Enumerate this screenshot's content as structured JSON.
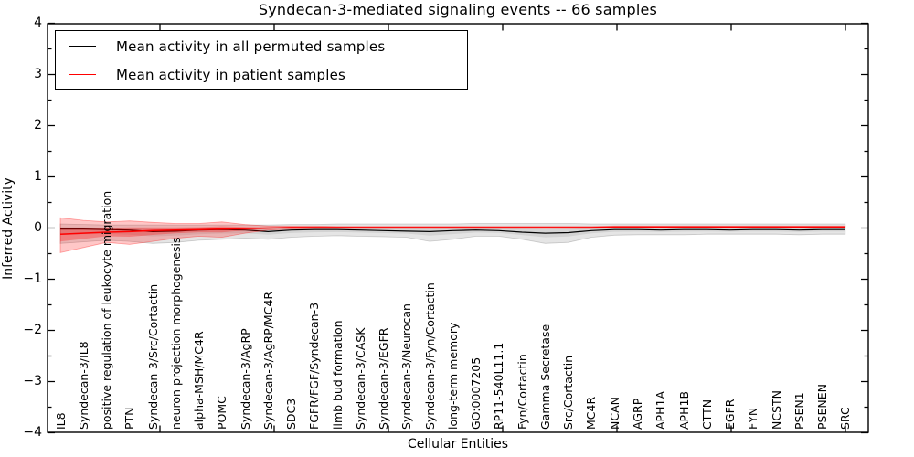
{
  "title": "Syndecan-3-mediated signaling events -- 66 samples",
  "axes": {
    "x_label": "Cellular Entities",
    "y_label": "Inferred Activity",
    "y_ticks": [
      "4",
      "3",
      "2",
      "1",
      "0",
      "−1",
      "−2",
      "−3",
      "−4"
    ]
  },
  "legend": {
    "items": [
      {
        "label": "Mean activity in all permuted samples",
        "color": "#000000"
      },
      {
        "label": "Mean activity in patient samples",
        "color": "#ff0000"
      }
    ]
  },
  "chart_data": {
    "type": "line",
    "title": "Syndecan-3-mediated signaling events -- 66 samples",
    "xlabel": "Cellular Entities",
    "ylabel": "Inferred Activity",
    "ylim": [
      -4,
      4
    ],
    "grid": false,
    "legend_position": "upper left",
    "reference_line": {
      "y": 0,
      "style": "dotted",
      "color": "#000000"
    },
    "categories": [
      "IL8",
      "Syndecan-3/IL8",
      "positive regulation of leukocyte migration",
      "PTN",
      "Syndecan-3/Src/Cortactin",
      "neuron projection morphogenesis",
      "alpha-MSH/MC4R",
      "POMC",
      "Syndecan-3/AgRP",
      "Syndecan-3/AgRP/MC4R",
      "SDC3",
      "FGFR/FGF/Syndecan-3",
      "limb bud formation",
      "Syndecan-3/CASK",
      "Syndecan-3/EGFR",
      "Syndecan-3/Neurocan",
      "Syndecan-3/Fyn/Cortactin",
      "long-term memory",
      "GO:0007205",
      "RP11-540L11.1",
      "Fyn/Cortactin",
      "Gamma Secretase",
      "Src/Cortactin",
      "MC4R",
      "NCAN",
      "AGRP",
      "APH1A",
      "APH1B",
      "CTTN",
      "EGFR",
      "FYN",
      "NCSTN",
      "PSEN1",
      "PSENEN",
      "SRC"
    ],
    "series": [
      {
        "name": "Mean activity in all permuted samples",
        "color": "#000000",
        "band_color": "rgba(0,0,0,0.10)",
        "values": [
          -0.02,
          -0.02,
          -0.03,
          -0.04,
          -0.07,
          -0.06,
          -0.04,
          -0.03,
          -0.04,
          -0.07,
          -0.04,
          -0.03,
          -0.03,
          -0.04,
          -0.05,
          -0.06,
          -0.07,
          -0.05,
          -0.04,
          -0.05,
          -0.08,
          -0.1,
          -0.09,
          -0.05,
          -0.03,
          -0.03,
          -0.04,
          -0.03,
          -0.03,
          -0.04,
          -0.03,
          -0.03,
          -0.04,
          -0.03,
          -0.03
        ],
        "band_upper": [
          0.08,
          0.07,
          0.06,
          0.06,
          0.06,
          0.06,
          0.06,
          0.06,
          0.06,
          0.06,
          0.07,
          0.07,
          0.08,
          0.08,
          0.08,
          0.08,
          0.08,
          0.08,
          0.09,
          0.09,
          0.09,
          0.09,
          0.09,
          0.08,
          0.08,
          0.08,
          0.08,
          0.08,
          0.08,
          0.08,
          0.08,
          0.08,
          0.08,
          0.08,
          0.08
        ],
        "band_lower": [
          -0.3,
          -0.27,
          -0.24,
          -0.26,
          -0.3,
          -0.28,
          -0.24,
          -0.22,
          -0.2,
          -0.22,
          -0.18,
          -0.16,
          -0.15,
          -0.16,
          -0.17,
          -0.18,
          -0.26,
          -0.22,
          -0.16,
          -0.16,
          -0.22,
          -0.3,
          -0.28,
          -0.18,
          -0.14,
          -0.13,
          -0.13,
          -0.13,
          -0.12,
          -0.12,
          -0.12,
          -0.12,
          -0.13,
          -0.12,
          -0.12
        ]
      },
      {
        "name": "Mean activity in patient samples",
        "color": "#ff0000",
        "band_color": "rgba(255,0,0,0.22)",
        "values": [
          -0.12,
          -0.1,
          -0.08,
          -0.07,
          -0.05,
          -0.04,
          -0.03,
          -0.02,
          -0.01,
          0.0,
          0.01,
          0.01,
          0.01,
          0.01,
          0.01,
          0.01,
          0.01,
          0.01,
          0.01,
          0.01,
          0.01,
          0.01,
          0.01,
          0.01,
          0.02,
          0.02,
          0.02,
          0.02,
          0.02,
          0.02,
          0.02,
          0.02,
          0.02,
          0.02,
          0.02
        ],
        "band_upper": [
          0.2,
          0.15,
          0.12,
          0.14,
          0.11,
          0.09,
          0.09,
          0.12,
          0.07,
          0.04,
          0.04,
          0.04,
          0.03,
          0.03,
          0.03,
          0.03,
          0.03,
          0.03,
          0.03,
          0.03,
          0.03,
          0.03,
          0.03,
          0.03,
          0.04,
          0.04,
          0.04,
          0.04,
          0.04,
          0.04,
          0.04,
          0.04,
          0.04,
          0.04,
          0.04
        ],
        "band_lower": [
          -0.48,
          -0.38,
          -0.28,
          -0.32,
          -0.26,
          -0.2,
          -0.16,
          -0.18,
          -0.1,
          -0.04,
          -0.02,
          -0.01,
          -0.01,
          -0.01,
          -0.01,
          -0.01,
          -0.01,
          -0.01,
          -0.01,
          -0.01,
          -0.01,
          -0.01,
          -0.01,
          -0.01,
          0.0,
          0.0,
          0.0,
          0.0,
          0.0,
          0.0,
          0.0,
          0.0,
          0.0,
          0.0,
          0.0
        ]
      }
    ]
  }
}
